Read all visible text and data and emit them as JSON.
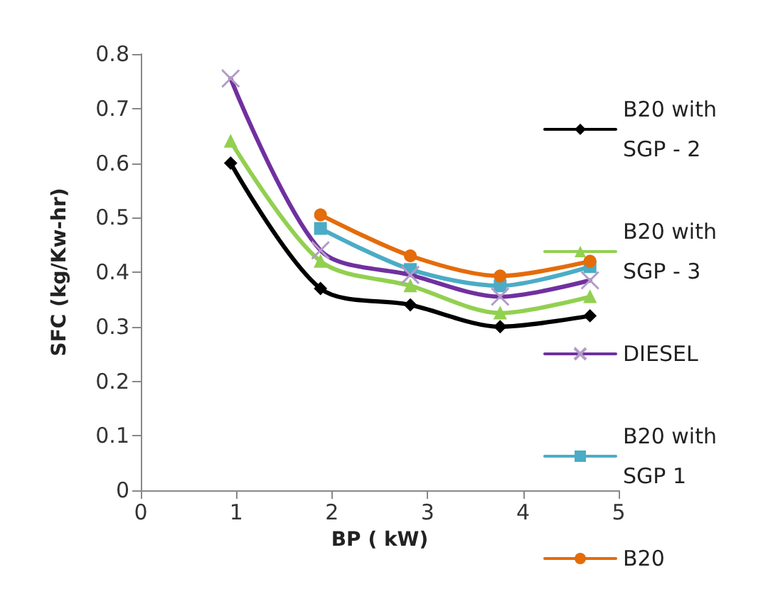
{
  "chart_data": {
    "type": "line",
    "xlabel": "BP ( kW)",
    "ylabel": "SFC (kg/Kw-hr)",
    "x": [
      0.94,
      1.88,
      2.82,
      3.76,
      4.7
    ],
    "xlim": [
      0,
      5
    ],
    "xticks": [
      0,
      1,
      2,
      3,
      4,
      5
    ],
    "ylim": [
      0,
      0.8
    ],
    "yticks": [
      0,
      0.1,
      0.2,
      0.3,
      0.4,
      0.5,
      0.6,
      0.7,
      0.8
    ],
    "grid": false,
    "legend": "right",
    "line_style": "solid",
    "series": [
      {
        "name": "B20 with SGP - 2",
        "color": "#000000",
        "marker": "diamond",
        "values": [
          0.6,
          0.37,
          0.34,
          0.3,
          0.32
        ]
      },
      {
        "name": "B20 with SGP - 3",
        "color": "#92d050",
        "marker": "triangle",
        "values": [
          0.64,
          0.42,
          0.375,
          0.325,
          0.355
        ]
      },
      {
        "name": "DIESEL",
        "color": "#7030a0",
        "marker": "cross",
        "values": [
          0.755,
          0.44,
          0.395,
          0.355,
          0.385
        ]
      },
      {
        "name": "B20 with SGP 1",
        "color": "#4bacc6",
        "marker": "square",
        "values": [
          null,
          0.48,
          0.405,
          0.375,
          0.41
        ]
      },
      {
        "name": "B20",
        "color": "#e46c0a",
        "marker": "circle",
        "values": [
          null,
          0.505,
          0.43,
          0.393,
          0.42
        ]
      }
    ]
  }
}
